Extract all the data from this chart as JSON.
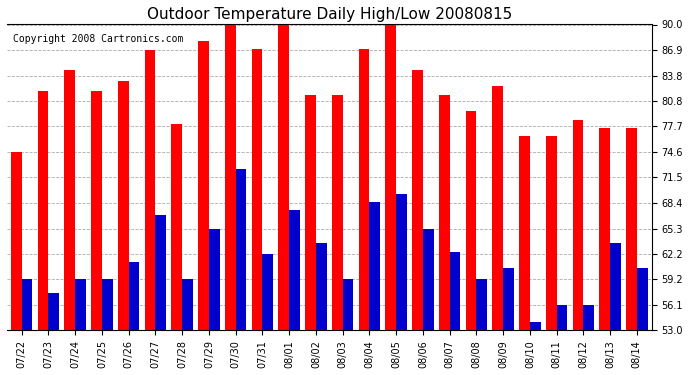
{
  "title": "Outdoor Temperature Daily High/Low 20080815",
  "copyright": "Copyright 2008 Cartronics.com",
  "dates": [
    "07/22",
    "07/23",
    "07/24",
    "07/25",
    "07/26",
    "07/27",
    "07/28",
    "07/29",
    "07/30",
    "07/31",
    "08/01",
    "08/02",
    "08/03",
    "08/04",
    "08/05",
    "08/06",
    "08/07",
    "08/08",
    "08/09",
    "08/10",
    "08/11",
    "08/12",
    "08/13",
    "08/14"
  ],
  "highs": [
    74.6,
    82.0,
    84.5,
    82.0,
    83.2,
    86.9,
    78.0,
    88.0,
    90.0,
    87.0,
    90.0,
    81.5,
    81.5,
    87.0,
    90.0,
    84.5,
    81.5,
    79.5,
    82.5,
    76.5,
    76.5,
    78.5,
    77.5,
    77.5
  ],
  "lows": [
    59.2,
    57.5,
    59.2,
    59.2,
    61.2,
    67.0,
    59.2,
    65.3,
    72.5,
    62.2,
    67.5,
    63.5,
    59.2,
    68.5,
    69.5,
    65.3,
    62.5,
    59.2,
    60.5,
    54.0,
    56.1,
    56.1,
    63.5,
    60.5
  ],
  "ylim_min": 53.0,
  "ylim_max": 90.0,
  "yticks": [
    53.0,
    56.1,
    59.2,
    62.2,
    65.3,
    68.4,
    71.5,
    74.6,
    77.7,
    80.8,
    83.8,
    86.9,
    90.0
  ],
  "high_color": "#ff0000",
  "low_color": "#0000cc",
  "bg_color": "#ffffff",
  "grid_color": "#888888",
  "title_fontsize": 11,
  "tick_fontsize": 7,
  "copyright_fontsize": 7
}
